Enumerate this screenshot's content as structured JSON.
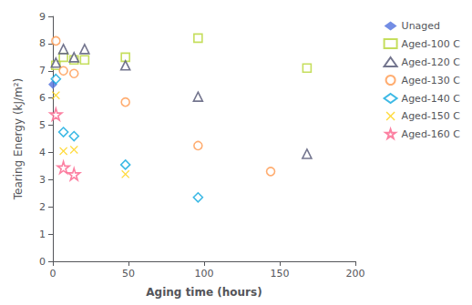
{
  "chart_data": {
    "type": "scatter",
    "xlabel": "Aging time (hours)",
    "ylabel": "Tearing Energy (kJ/m²)",
    "xlim": [
      0,
      200
    ],
    "ylim": [
      0,
      9
    ],
    "xticks": [
      0,
      50,
      100,
      150,
      200
    ],
    "yticks": [
      0,
      1,
      2,
      3,
      4,
      5,
      6,
      7,
      8,
      9
    ],
    "grid": false,
    "legend": "right",
    "series": [
      {
        "name": "Unaged",
        "marker": "diamond",
        "x": [
          0
        ],
        "y": [
          6.5
        ]
      },
      {
        "name": "Aged-100 C",
        "marker": "square-open",
        "x": [
          2,
          7,
          14,
          21,
          48,
          96,
          168
        ],
        "y": [
          7.2,
          7.5,
          7.4,
          7.4,
          7.5,
          8.2,
          7.1
        ]
      },
      {
        "name": "Aged-120 C",
        "marker": "triangle-open",
        "x": [
          2,
          7,
          14,
          21,
          48,
          96,
          168
        ],
        "y": [
          7.3,
          7.8,
          7.5,
          7.8,
          7.2,
          6.05,
          3.95
        ]
      },
      {
        "name": "Aged-130 C",
        "marker": "circle-open",
        "x": [
          2,
          7,
          14,
          48,
          96,
          144
        ],
        "y": [
          8.1,
          7.0,
          6.9,
          5.85,
          4.25,
          3.3
        ]
      },
      {
        "name": "Aged-140 C",
        "marker": "diamond-open",
        "x": [
          2,
          7,
          14,
          48,
          96
        ],
        "y": [
          6.7,
          4.75,
          4.6,
          3.55,
          2.35
        ]
      },
      {
        "name": "Aged-150 C",
        "marker": "x",
        "x": [
          2,
          7,
          14,
          48
        ],
        "y": [
          6.1,
          4.05,
          4.1,
          3.2
        ]
      },
      {
        "name": "Aged-160 C",
        "marker": "star-open",
        "x": [
          2,
          7,
          14
        ],
        "y": [
          5.4,
          3.45,
          3.2
        ]
      }
    ]
  }
}
